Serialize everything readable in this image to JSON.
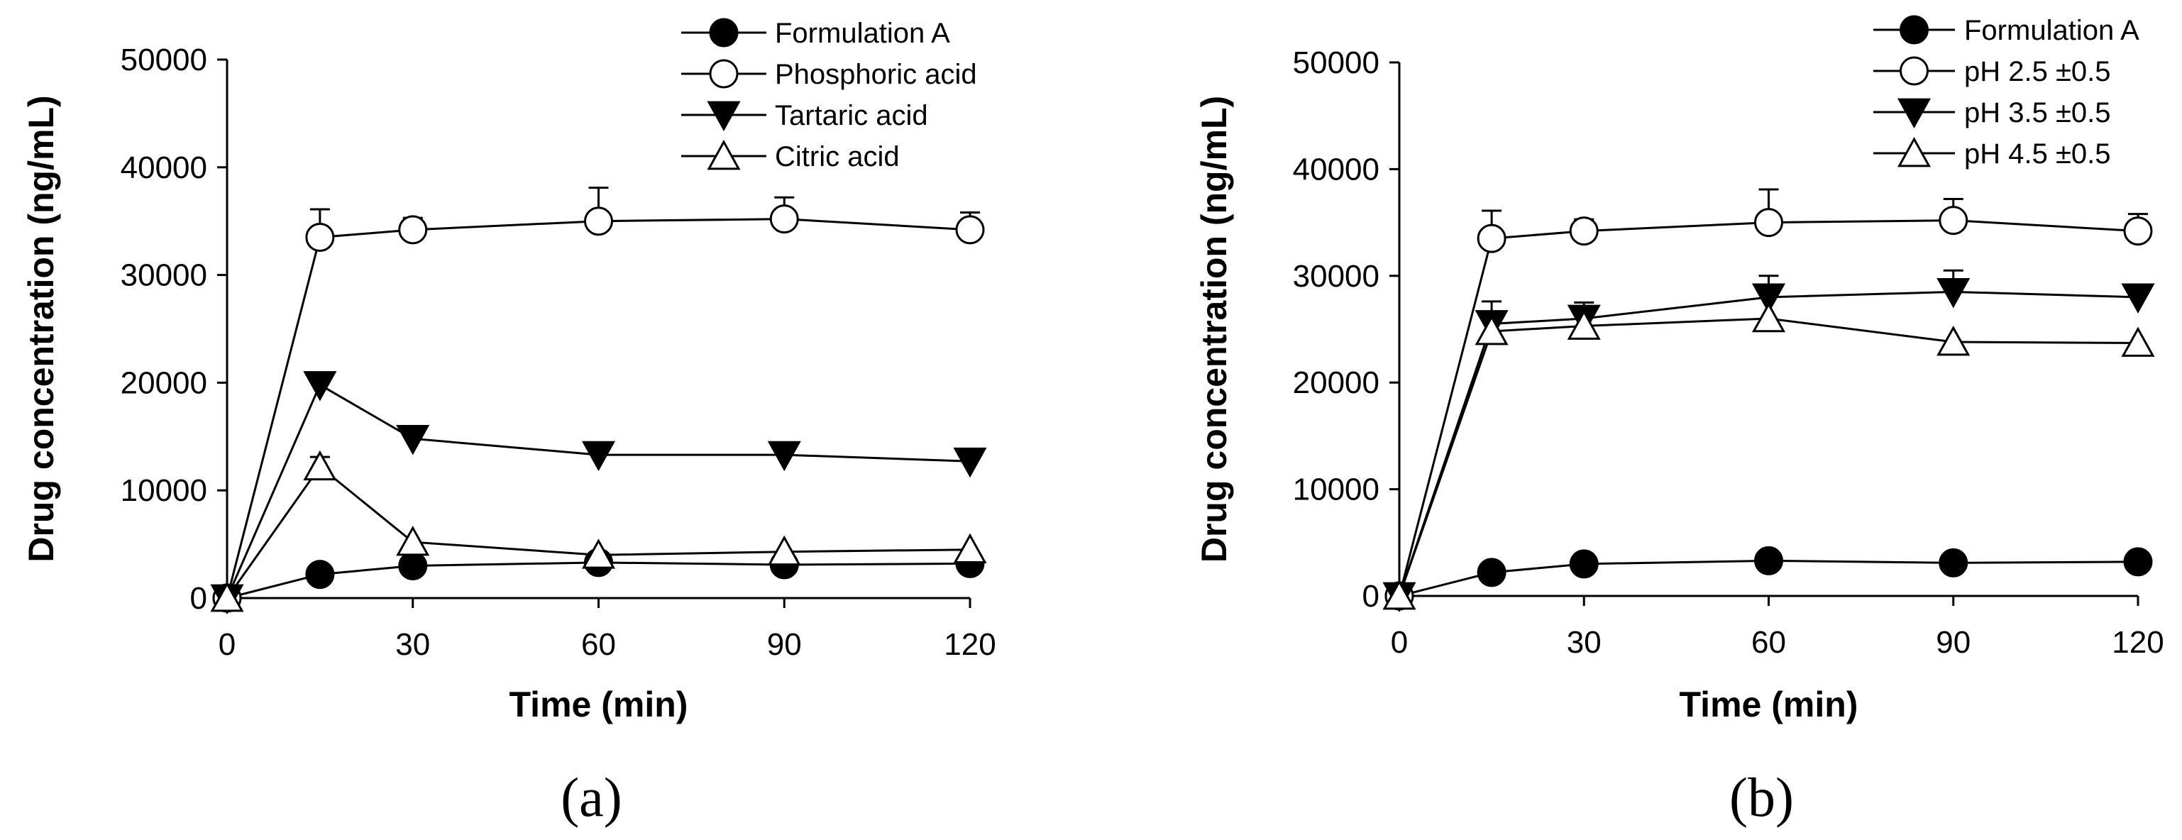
{
  "colors": {
    "line": "#000000",
    "filled": "#000000",
    "open": "#ffffff",
    "background": "#ffffff"
  },
  "chart_data": [
    {
      "type": "line",
      "panel_label": "(a)",
      "xlabel": "Time (min)",
      "ylabel": "Drug concentration (ng/mL)",
      "xlim": [
        0,
        120
      ],
      "ylim": [
        0,
        50000
      ],
      "xticks": [
        0,
        30,
        60,
        90,
        120
      ],
      "xtick_labels": [
        "0",
        "30",
        "60",
        "90",
        "120"
      ],
      "yticks": [
        0,
        10000,
        20000,
        30000,
        40000,
        50000
      ],
      "ytick_labels": [
        "0",
        "10000",
        "20000",
        "30000",
        "40000",
        "50000"
      ],
      "legend_position": "top-right",
      "series": [
        {
          "name": "Formulation A",
          "marker": "circle-filled",
          "x": [
            0,
            15,
            30,
            60,
            90,
            120
          ],
          "y": [
            0,
            2200,
            3000,
            3300,
            3100,
            3200
          ],
          "err": [
            0,
            0,
            0,
            0,
            0,
            0
          ]
        },
        {
          "name": "Phosphoric acid",
          "marker": "circle-open",
          "x": [
            0,
            15,
            30,
            60,
            90,
            120
          ],
          "y": [
            0,
            33500,
            34200,
            35000,
            35200,
            34200
          ],
          "err": [
            0,
            2600,
            1100,
            3100,
            2000,
            1600
          ]
        },
        {
          "name": "Tartaric acid",
          "marker": "triangle-down-filled",
          "x": [
            0,
            15,
            30,
            60,
            90,
            120
          ],
          "y": [
            0,
            19800,
            14800,
            13300,
            13300,
            12700
          ],
          "err": [
            0,
            1100,
            700,
            0,
            0,
            0
          ]
        },
        {
          "name": "Citric acid",
          "marker": "triangle-up-open",
          "x": [
            0,
            15,
            30,
            60,
            90,
            120
          ],
          "y": [
            0,
            12200,
            5200,
            4000,
            4300,
            4500
          ],
          "err": [
            0,
            900,
            0,
            0,
            0,
            0
          ]
        }
      ]
    },
    {
      "type": "line",
      "panel_label": "(b)",
      "xlabel": "Time (min)",
      "ylabel": "Drug concentration (ng/mL)",
      "xlim": [
        0,
        120
      ],
      "ylim": [
        0,
        50000
      ],
      "xticks": [
        0,
        30,
        60,
        90,
        120
      ],
      "xtick_labels": [
        "0",
        "30",
        "60",
        "90",
        "120"
      ],
      "yticks": [
        0,
        10000,
        20000,
        30000,
        40000,
        50000
      ],
      "ytick_labels": [
        "0",
        "10000",
        "20000",
        "30000",
        "40000",
        "50000"
      ],
      "legend_position": "top-right",
      "series": [
        {
          "name": "Formulation A",
          "marker": "circle-filled",
          "x": [
            0,
            15,
            30,
            60,
            90,
            120
          ],
          "y": [
            0,
            2200,
            3000,
            3300,
            3100,
            3200
          ],
          "err": [
            0,
            0,
            0,
            0,
            0,
            0
          ]
        },
        {
          "name": "pH 2.5 ±0.5",
          "marker": "circle-open",
          "x": [
            0,
            15,
            30,
            60,
            90,
            120
          ],
          "y": [
            0,
            33500,
            34200,
            35000,
            35200,
            34200
          ],
          "err": [
            0,
            2600,
            1100,
            3100,
            2000,
            1600
          ]
        },
        {
          "name": "pH 3.5 ±0.5",
          "marker": "triangle-down-filled",
          "x": [
            0,
            15,
            30,
            60,
            90,
            120
          ],
          "y": [
            0,
            25500,
            26000,
            28000,
            28500,
            28000
          ],
          "err": [
            0,
            2100,
            1500,
            2000,
            2000,
            900
          ]
        },
        {
          "name": "pH 4.5 ±0.5",
          "marker": "triangle-up-open",
          "x": [
            0,
            15,
            30,
            60,
            90,
            120
          ],
          "y": [
            0,
            24800,
            25300,
            26000,
            23800,
            23700
          ],
          "err": [
            0,
            0,
            0,
            0,
            0,
            0
          ]
        }
      ]
    }
  ]
}
